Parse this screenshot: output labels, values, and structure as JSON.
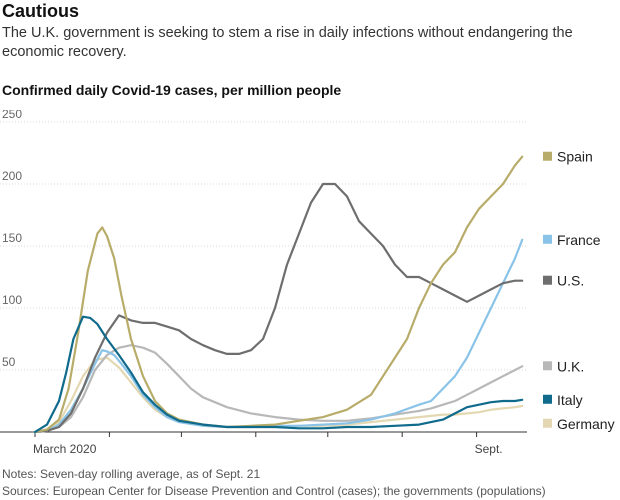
{
  "headline": "Cautious",
  "dek": "The U.K. government is seeking to stem a rise in daily infections without endangering the economic recovery.",
  "notes": [
    "Notes: Seven-day rolling average, as of Sept. 21",
    "Sources: European Center for Disease Prevention and Control (cases); the governments (populations)"
  ],
  "chart_data": {
    "type": "line",
    "title": "Confirmed daily Covid-19 cases, per million people",
    "xlabel": "",
    "ylabel": "",
    "ylim": [
      0,
      250
    ],
    "yticks": [
      0,
      50,
      100,
      150,
      200,
      250
    ],
    "y_tick_labels": [
      "",
      "50",
      "100",
      "150",
      "200",
      "250"
    ],
    "x_domain": [
      0,
      205
    ],
    "x_ticks": [
      {
        "x": 0,
        "label": "March 2020"
      },
      {
        "x": 31,
        "label": ""
      },
      {
        "x": 61,
        "label": ""
      },
      {
        "x": 92,
        "label": ""
      },
      {
        "x": 122,
        "label": ""
      },
      {
        "x": 153,
        "label": ""
      },
      {
        "x": 184,
        "label": "Sept."
      }
    ],
    "legend_placement": "right, at line ends",
    "series": [
      {
        "name": "Spain",
        "color": "#b8ac6a",
        "x": [
          0,
          5,
          10,
          14,
          18,
          22,
          26,
          28,
          30,
          33,
          36,
          40,
          45,
          50,
          55,
          60,
          70,
          80,
          90,
          100,
          110,
          120,
          130,
          140,
          145,
          150,
          155,
          160,
          165,
          170,
          175,
          180,
          185,
          190,
          195,
          200,
          203
        ],
        "y": [
          0,
          2,
          10,
          35,
          80,
          130,
          160,
          165,
          158,
          140,
          110,
          75,
          45,
          25,
          15,
          10,
          6,
          4,
          5,
          6,
          9,
          12,
          18,
          30,
          45,
          60,
          75,
          100,
          120,
          135,
          145,
          165,
          180,
          190,
          200,
          215,
          222
        ]
      },
      {
        "name": "France",
        "color": "#8ac3e8",
        "x": [
          0,
          5,
          10,
          15,
          20,
          25,
          28,
          30,
          33,
          36,
          40,
          45,
          50,
          55,
          60,
          70,
          80,
          90,
          100,
          110,
          120,
          130,
          140,
          150,
          160,
          165,
          170,
          175,
          180,
          185,
          190,
          195,
          200,
          203
        ],
        "y": [
          0,
          1,
          6,
          18,
          35,
          55,
          66,
          65,
          62,
          55,
          45,
          30,
          20,
          12,
          8,
          5,
          4,
          4,
          5,
          5,
          6,
          7,
          10,
          15,
          22,
          25,
          35,
          45,
          60,
          80,
          100,
          120,
          140,
          155
        ]
      },
      {
        "name": "U.S.",
        "color": "#6e6e6e",
        "x": [
          0,
          5,
          10,
          15,
          20,
          25,
          30,
          35,
          40,
          45,
          50,
          55,
          60,
          65,
          70,
          75,
          80,
          85,
          90,
          95,
          100,
          105,
          110,
          115,
          120,
          125,
          130,
          135,
          140,
          145,
          150,
          155,
          160,
          165,
          170,
          175,
          180,
          185,
          190,
          195,
          200,
          203
        ],
        "y": [
          0,
          1,
          4,
          15,
          35,
          60,
          80,
          94,
          90,
          88,
          88,
          85,
          82,
          75,
          70,
          66,
          63,
          63,
          66,
          75,
          100,
          135,
          160,
          185,
          200,
          200,
          190,
          170,
          160,
          150,
          135,
          125,
          125,
          120,
          115,
          110,
          105,
          110,
          115,
          120,
          122,
          122
        ]
      },
      {
        "name": "U.K.",
        "color": "#b8b8b8",
        "x": [
          0,
          5,
          10,
          15,
          20,
          25,
          30,
          35,
          40,
          45,
          50,
          55,
          60,
          65,
          70,
          80,
          90,
          100,
          110,
          120,
          130,
          140,
          150,
          160,
          165,
          170,
          175,
          180,
          185,
          190,
          195,
          200,
          203
        ],
        "y": [
          0,
          1,
          4,
          12,
          28,
          50,
          62,
          68,
          70,
          68,
          64,
          55,
          45,
          35,
          28,
          20,
          15,
          12,
          10,
          9,
          9,
          11,
          14,
          17,
          19,
          22,
          25,
          30,
          35,
          40,
          45,
          50,
          53
        ]
      },
      {
        "name": "Italy",
        "color": "#0f6a8c",
        "x": [
          0,
          5,
          10,
          13,
          16,
          20,
          23,
          26,
          30,
          35,
          40,
          45,
          50,
          55,
          60,
          70,
          80,
          90,
          100,
          110,
          120,
          130,
          140,
          150,
          160,
          165,
          170,
          175,
          180,
          185,
          190,
          195,
          200,
          203
        ],
        "y": [
          0,
          6,
          25,
          48,
          75,
          93,
          92,
          87,
          75,
          62,
          48,
          32,
          22,
          14,
          9,
          6,
          4,
          4,
          4,
          3,
          3,
          4,
          4,
          5,
          6,
          8,
          10,
          15,
          20,
          22,
          24,
          25,
          25,
          26
        ]
      },
      {
        "name": "Germany",
        "color": "#e3d8b2",
        "x": [
          0,
          5,
          10,
          15,
          20,
          25,
          30,
          35,
          40,
          45,
          50,
          55,
          60,
          70,
          80,
          90,
          100,
          110,
          120,
          130,
          140,
          150,
          160,
          165,
          170,
          175,
          180,
          185,
          190,
          195,
          200,
          203
        ],
        "y": [
          0,
          1,
          8,
          25,
          45,
          58,
          60,
          52,
          40,
          28,
          18,
          12,
          8,
          5,
          4,
          4,
          4,
          5,
          5,
          6,
          8,
          10,
          12,
          13,
          14,
          14,
          15,
          16,
          18,
          19,
          20,
          21
        ]
      }
    ]
  }
}
